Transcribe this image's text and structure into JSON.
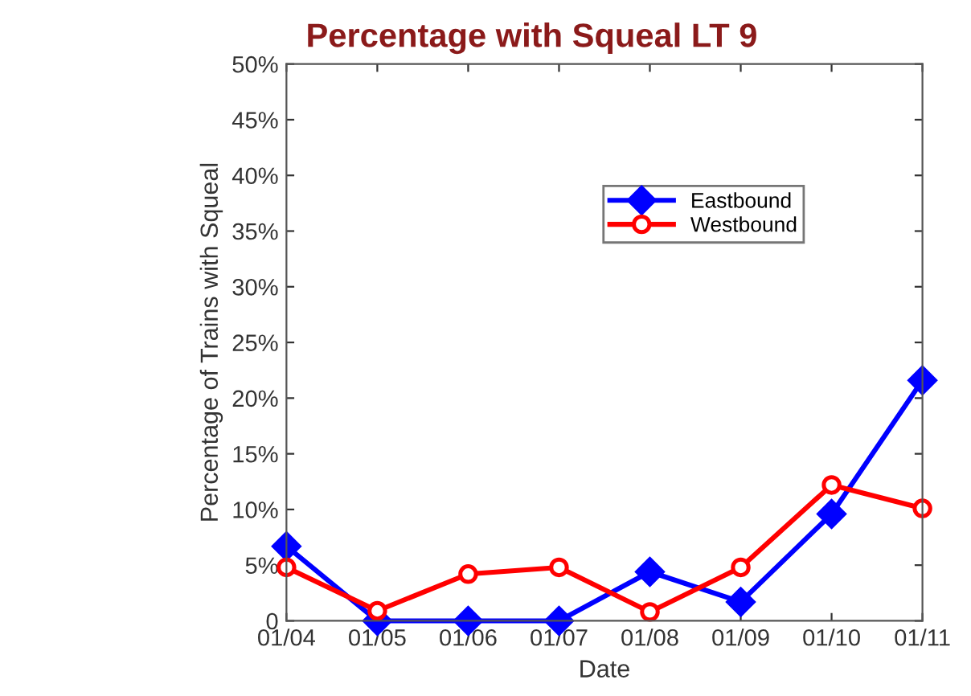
{
  "chart_data": {
    "type": "line",
    "title": "Percentage with Squeal LT 9",
    "xlabel": "Date",
    "ylabel": "Percentage of Trains with Squeal",
    "categories": [
      "01/04",
      "01/05",
      "01/06",
      "01/07",
      "01/08",
      "01/09",
      "01/10",
      "01/11"
    ],
    "series": [
      {
        "name": "Eastbound",
        "color": "#0000ff",
        "marker": "diamond",
        "values": [
          6.7,
          0,
          0,
          0,
          4.4,
          1.7,
          9.6,
          21.6
        ]
      },
      {
        "name": "Westbound",
        "color": "#ff0000",
        "marker": "circle",
        "values": [
          4.8,
          0.9,
          4.2,
          4.8,
          0.8,
          4.8,
          12.2,
          10.1
        ]
      }
    ],
    "ylim": [
      0,
      50
    ],
    "yticks": [
      {
        "value": 0,
        "label": "0"
      },
      {
        "value": 5,
        "label": "5%"
      },
      {
        "value": 10,
        "label": "10%"
      },
      {
        "value": 15,
        "label": "15%"
      },
      {
        "value": 20,
        "label": "20%"
      },
      {
        "value": 25,
        "label": "25%"
      },
      {
        "value": 30,
        "label": "30%"
      },
      {
        "value": 35,
        "label": "35%"
      },
      {
        "value": 40,
        "label": "40%"
      },
      {
        "value": 45,
        "label": "45%"
      },
      {
        "value": 50,
        "label": "50%"
      }
    ],
    "grid": false,
    "legend": "top right",
    "line_style": "solid"
  }
}
